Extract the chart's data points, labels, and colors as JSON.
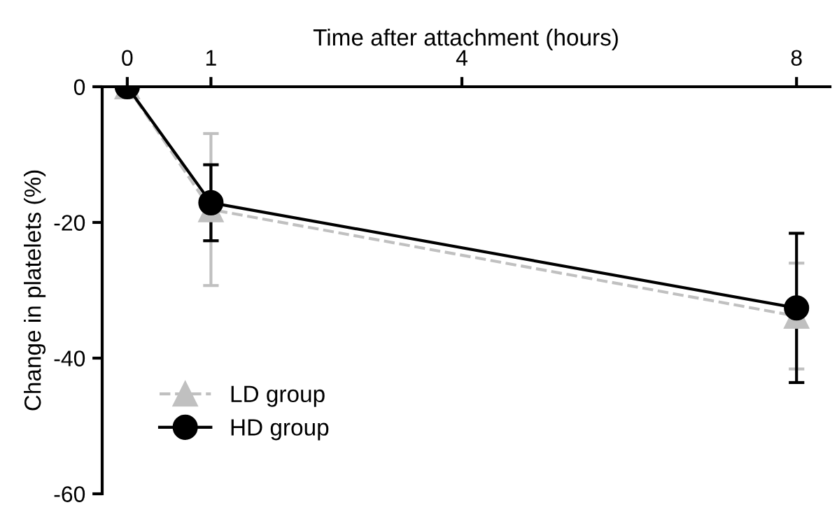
{
  "chart_data": {
    "type": "line",
    "xlabel": "Time after attachment (hours)",
    "ylabel": "Change in platelets (%)",
    "x": [
      0,
      1,
      8
    ],
    "xlim": [
      -0.3,
      8.4
    ],
    "xticks": [
      0,
      1,
      4,
      8
    ],
    "ylim": [
      -60,
      0
    ],
    "yticks": [
      0,
      -20,
      -40,
      -60
    ],
    "grid": false,
    "legend": "bottom left",
    "series": [
      {
        "name": "LD group",
        "color": "#c0c0c0",
        "marker": "triangle",
        "line_style": "dashed",
        "values": [
          0,
          -18.1,
          -33.8
        ],
        "errors": [
          null,
          11.2,
          7.8
        ]
      },
      {
        "name": "HD group",
        "color": "#000000",
        "marker": "circle",
        "line_style": "solid",
        "values": [
          0,
          -17.1,
          -32.6
        ],
        "errors": [
          null,
          5.6,
          11
        ]
      }
    ]
  }
}
